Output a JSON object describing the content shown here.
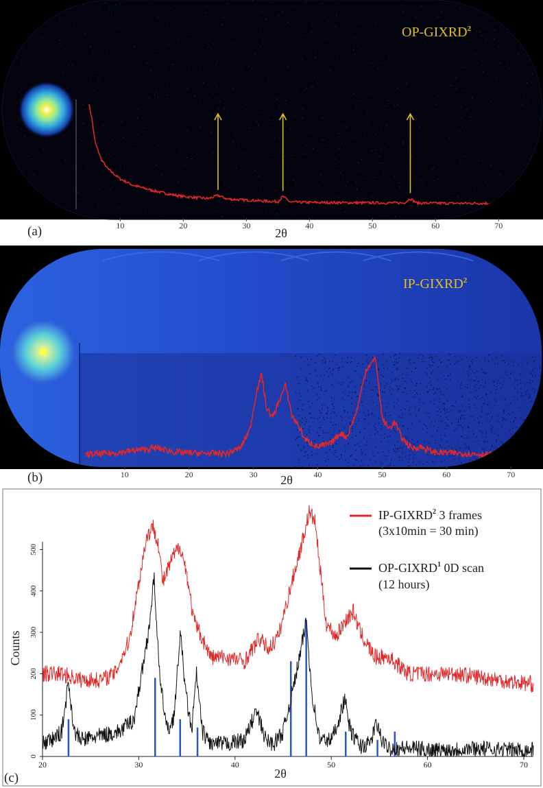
{
  "figure": {
    "panels": [
      {
        "id": "a",
        "label": "(a)",
        "overlay_title": "OP-GIXRD",
        "overlay_sup": "2",
        "xaxis_title": "2θ",
        "xticks": [
          "10",
          "20",
          "30",
          "40",
          "50",
          "60",
          "70"
        ],
        "colors": {
          "background": "#02030c",
          "trace": "#e02828",
          "arrows": "#e0c020",
          "title": "#e0c020"
        }
      },
      {
        "id": "b",
        "label": "(b)",
        "overlay_title": "IP-GIXRD",
        "overlay_sup": "2",
        "xaxis_title": "2θ",
        "xticks": [
          "10",
          "20",
          "30",
          "40",
          "50",
          "60",
          "70"
        ],
        "colors": {
          "background": "#1b3fb8",
          "trace": "#e02828",
          "title": "#e0c020"
        }
      },
      {
        "id": "c",
        "label": "(c)",
        "xaxis_title": "2θ",
        "yaxis_title": "Counts",
        "xticks": [
          "20",
          "30",
          "40",
          "50",
          "60",
          "70"
        ],
        "yticks": [
          "0",
          "100",
          "200",
          "300",
          "400",
          "500"
        ],
        "legend": [
          {
            "name": "IP-GIXRD",
            "sup": "2",
            "rest": " 3 frames",
            "line2": "(3x10min = 30 min)",
            "color": "#e02828"
          },
          {
            "name": "OP-GIXRD",
            "sup": "1",
            "rest": "  0D scan",
            "line2": "(12 hours)",
            "color": "#111111"
          }
        ],
        "colors": {
          "reference_sticks": "#2a55c8"
        }
      }
    ]
  },
  "chart_data": [
    {
      "type": "line",
      "panel": "a",
      "xlabel": "2θ",
      "xlim": [
        3,
        74
      ],
      "series": [
        {
          "name": "OP-GIXRD",
          "x": [
            5,
            5.5,
            6,
            7,
            8,
            10,
            12,
            15,
            18,
            20,
            22,
            24,
            25.5,
            27,
            30,
            33,
            35,
            35.8,
            37,
            40,
            45,
            50,
            55,
            56,
            57,
            60,
            62,
            65,
            70,
            73
          ],
          "y": [
            1.0,
            0.85,
            0.62,
            0.45,
            0.36,
            0.26,
            0.2,
            0.15,
            0.11,
            0.09,
            0.08,
            0.07,
            0.1,
            0.065,
            0.055,
            0.045,
            0.04,
            0.09,
            0.035,
            0.032,
            0.03,
            0.028,
            0.027,
            0.07,
            0.026,
            0.025,
            0.024,
            0.024,
            0.023,
            0.022
          ]
        }
      ],
      "arrows_at_2theta": [
        25.5,
        35.8,
        56
      ]
    },
    {
      "type": "line",
      "panel": "b",
      "xlabel": "2θ",
      "xlim": [
        3,
        72
      ],
      "series": [
        {
          "name": "IP-GIXRD",
          "x": [
            4,
            8,
            12,
            15,
            18,
            22,
            26,
            28,
            29.5,
            30.5,
            31.3,
            32,
            33,
            34,
            35,
            36,
            37,
            38,
            40,
            42,
            43.5,
            44.5,
            46,
            47.5,
            49,
            50,
            51,
            52,
            53,
            54.5,
            56,
            58,
            62,
            66,
            70,
            71
          ],
          "y": [
            0.06,
            0.07,
            0.1,
            0.12,
            0.08,
            0.07,
            0.07,
            0.12,
            0.3,
            0.65,
            0.8,
            0.5,
            0.4,
            0.56,
            0.7,
            0.42,
            0.33,
            0.2,
            0.13,
            0.16,
            0.26,
            0.22,
            0.45,
            0.85,
            0.95,
            0.4,
            0.3,
            0.36,
            0.22,
            0.12,
            0.13,
            0.08,
            0.07,
            0.06,
            0.05,
            0.05
          ]
        }
      ]
    },
    {
      "type": "line",
      "panel": "c",
      "xlabel": "2θ",
      "ylabel": "Counts",
      "xlim": [
        20,
        71
      ],
      "ylim": [
        0,
        610
      ],
      "series": [
        {
          "name": "IP-GIXRD 3 frames (3x10min = 30 min)",
          "x": [
            20,
            22,
            24,
            26,
            27.5,
            29,
            30,
            30.8,
            31.5,
            32,
            32.5,
            33.5,
            34.3,
            35,
            35.7,
            36.5,
            37.5,
            39,
            41,
            42.5,
            43.5,
            44.5,
            46,
            47,
            47.7,
            48.3,
            49,
            49.5,
            50.5,
            51.5,
            52.3,
            53,
            54.5,
            56,
            57,
            58,
            60,
            63,
            66,
            69,
            71
          ],
          "y": [
            200,
            200,
            185,
            185,
            200,
            280,
            420,
            530,
            555,
            520,
            420,
            480,
            510,
            440,
            330,
            290,
            240,
            240,
            230,
            285,
            260,
            290,
            430,
            520,
            590,
            570,
            420,
            320,
            290,
            330,
            350,
            300,
            240,
            240,
            220,
            200,
            200,
            200,
            190,
            180,
            175
          ]
        },
        {
          "name": "OP-GIXRD 0D scan (12 hours)",
          "x": [
            20,
            21,
            22,
            22.7,
            23.3,
            24,
            26,
            28,
            29.5,
            30.3,
            31,
            31.6,
            32.2,
            33,
            33.7,
            34.3,
            34.9,
            35.5,
            36,
            36.6,
            37.5,
            39,
            41,
            42.2,
            43.2,
            44,
            45,
            46,
            46.8,
            47.4,
            48,
            48.8,
            50,
            50.8,
            51.4,
            52,
            53,
            54,
            54.7,
            55.4,
            56.2,
            58,
            61,
            65,
            69,
            71
          ],
          "y": [
            30,
            40,
            60,
            180,
            60,
            40,
            50,
            60,
            90,
            200,
            300,
            430,
            180,
            60,
            100,
            300,
            150,
            60,
            200,
            60,
            30,
            30,
            40,
            110,
            40,
            30,
            60,
            160,
            250,
            330,
            150,
            40,
            40,
            90,
            140,
            60,
            25,
            30,
            80,
            30,
            20,
            20,
            15,
            20,
            15,
            15
          ]
        }
      ],
      "reference_sticks": {
        "x": [
          22.7,
          31.7,
          34.3,
          36.1,
          45.8,
          47.4,
          51.5,
          54.8,
          56.6
        ],
        "y": [
          90,
          190,
          90,
          70,
          230,
          330,
          60,
          40,
          60
        ]
      }
    }
  ]
}
